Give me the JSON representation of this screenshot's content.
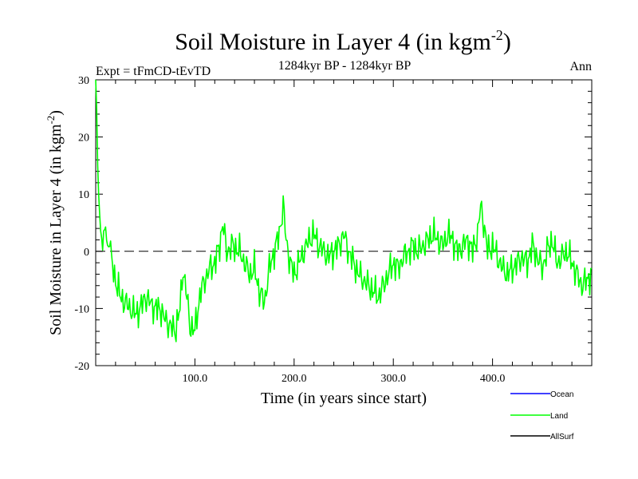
{
  "chart_data": {
    "type": "line",
    "title": "Soil Moisture in Layer 4 (in kgm",
    "title_sup": "-2",
    "title_close": ")",
    "subtitle": "1284kyr BP - 1284kyr BP",
    "expt_label": "Expt = tFmCD-tEvTD",
    "season_label": "Ann",
    "xlabel": "Time (in years since start)",
    "ylabel": "Soil Moisture in Layer 4 (in kgm",
    "ylabel_sup": "-2",
    "ylabel_close": ")",
    "xlim": [
      0,
      500
    ],
    "ylim": [
      -20,
      30
    ],
    "xticks": [
      100,
      200,
      300,
      400
    ],
    "xtick_labels": [
      "100.0",
      "200.0",
      "300.0",
      "400.0"
    ],
    "yticks": [
      -20,
      -10,
      0,
      10,
      20,
      30
    ],
    "ytick_labels": [
      "-20",
      "-10",
      "0",
      "10",
      "20",
      "30"
    ],
    "reference_line": 0,
    "legend": [
      {
        "name": "Ocean",
        "color": "#0000ff"
      },
      {
        "name": "Land",
        "color": "#00ff00"
      },
      {
        "name": "AllSurf",
        "color": "#000000"
      }
    ],
    "series": [
      {
        "name": "Land",
        "color": "#00ff00",
        "keypoints": [
          [
            0,
            30
          ],
          [
            1,
            25
          ],
          [
            2,
            15
          ],
          [
            4,
            5
          ],
          [
            6,
            3
          ],
          [
            8,
            1
          ],
          [
            10,
            5
          ],
          [
            12,
            0
          ],
          [
            14,
            3
          ],
          [
            16,
            -2
          ],
          [
            20,
            -5
          ],
          [
            25,
            -8
          ],
          [
            30,
            -9
          ],
          [
            35,
            -10
          ],
          [
            40,
            -11
          ],
          [
            45,
            -10
          ],
          [
            50,
            -8
          ],
          [
            55,
            -9
          ],
          [
            60,
            -10
          ],
          [
            65,
            -10
          ],
          [
            70,
            -12
          ],
          [
            75,
            -13
          ],
          [
            80,
            -14
          ],
          [
            85,
            -10
          ],
          [
            88,
            -3
          ],
          [
            92,
            -8
          ],
          [
            95,
            -13
          ],
          [
            100,
            -14
          ],
          [
            103,
            -10
          ],
          [
            106,
            -7
          ],
          [
            110,
            -5
          ],
          [
            115,
            -3
          ],
          [
            120,
            -2
          ],
          [
            125,
            1
          ],
          [
            128,
            5
          ],
          [
            132,
            0
          ],
          [
            138,
            1
          ],
          [
            145,
            0
          ],
          [
            150,
            -2
          ],
          [
            155,
            -4
          ],
          [
            160,
            -3
          ],
          [
            165,
            -7
          ],
          [
            170,
            -9
          ],
          [
            175,
            -3
          ],
          [
            180,
            0
          ],
          [
            185,
            3
          ],
          [
            189,
            8
          ],
          [
            192,
            2
          ],
          [
            196,
            -2
          ],
          [
            200,
            -4
          ],
          [
            205,
            -2
          ],
          [
            210,
            0
          ],
          [
            215,
            2
          ],
          [
            220,
            3
          ],
          [
            225,
            1
          ],
          [
            230,
            0
          ],
          [
            235,
            -1
          ],
          [
            240,
            0
          ],
          [
            245,
            1
          ],
          [
            250,
            3
          ],
          [
            255,
            0
          ],
          [
            260,
            -2
          ],
          [
            265,
            -4
          ],
          [
            270,
            -5
          ],
          [
            275,
            -6
          ],
          [
            280,
            -7
          ],
          [
            285,
            -8
          ],
          [
            290,
            -6
          ],
          [
            295,
            -4
          ],
          [
            300,
            -2
          ],
          [
            305,
            -3
          ],
          [
            310,
            -1
          ],
          [
            315,
            0
          ],
          [
            320,
            1
          ],
          [
            325,
            0
          ],
          [
            330,
            1
          ],
          [
            335,
            2
          ],
          [
            340,
            3
          ],
          [
            345,
            2
          ],
          [
            350,
            1
          ],
          [
            355,
            3
          ],
          [
            360,
            2
          ],
          [
            365,
            0
          ],
          [
            370,
            1
          ],
          [
            375,
            2
          ],
          [
            380,
            0
          ],
          [
            385,
            3
          ],
          [
            388,
            8
          ],
          [
            392,
            4
          ],
          [
            395,
            0
          ],
          [
            400,
            1
          ],
          [
            405,
            -1
          ],
          [
            410,
            -3
          ],
          [
            415,
            -4
          ],
          [
            420,
            -3
          ],
          [
            425,
            -2
          ],
          [
            430,
            -1
          ],
          [
            435,
            -2
          ],
          [
            440,
            1
          ],
          [
            445,
            -1
          ],
          [
            450,
            -3
          ],
          [
            455,
            0
          ],
          [
            460,
            2
          ],
          [
            465,
            -2
          ],
          [
            470,
            -1
          ],
          [
            475,
            0
          ],
          [
            480,
            -2
          ],
          [
            485,
            -4
          ],
          [
            490,
            -6
          ],
          [
            495,
            -5
          ],
          [
            500,
            -4
          ]
        ]
      }
    ]
  }
}
